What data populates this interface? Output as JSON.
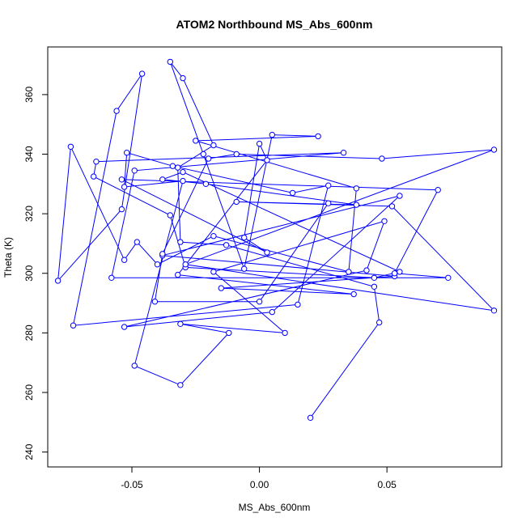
{
  "chart_data": {
    "type": "line",
    "title": "ATOM2 Northbound MS_Abs_600nm",
    "xlabel": "MS_Abs_600nm",
    "ylabel": "Theta (K)",
    "xlim": [
      -0.083,
      0.095
    ],
    "ylim": [
      235,
      376
    ],
    "x_ticks": [
      -0.05,
      0.0,
      0.05
    ],
    "x_tick_labels": [
      "-0.05",
      "0.00",
      "0.05"
    ],
    "y_ticks": [
      240,
      260,
      280,
      300,
      320,
      340,
      360
    ],
    "y_tick_labels": [
      "240",
      "260",
      "280",
      "300",
      "320",
      "340",
      "360"
    ],
    "grid": false,
    "series": [
      {
        "color": "#0000ff",
        "marker": "open-circle",
        "points": [
          {
            "x": 0.02,
            "y": 251.5
          },
          {
            "x": 0.047,
            "y": 283.5
          },
          {
            "x": 0.045,
            "y": 295.5
          },
          {
            "x": -0.013,
            "y": 309.5
          },
          {
            "x": -0.031,
            "y": 310.5
          },
          {
            "x": -0.032,
            "y": 335.5
          },
          {
            "x": -0.018,
            "y": 343.0
          },
          {
            "x": -0.03,
            "y": 365.5
          },
          {
            "x": -0.035,
            "y": 371.0
          },
          {
            "x": -0.022,
            "y": 340.0
          },
          {
            "x": -0.006,
            "y": 301.5
          },
          {
            "x": 0.005,
            "y": 346.5
          },
          {
            "x": 0.023,
            "y": 346.0
          },
          {
            "x": -0.025,
            "y": 344.5
          },
          {
            "x": 0.038,
            "y": 328.5
          },
          {
            "x": 0.035,
            "y": 300.5
          },
          {
            "x": -0.018,
            "y": 312.5
          },
          {
            "x": -0.04,
            "y": 303.0
          },
          {
            "x": -0.048,
            "y": 310.5
          },
          {
            "x": -0.053,
            "y": 304.5
          },
          {
            "x": -0.074,
            "y": 342.5
          },
          {
            "x": -0.079,
            "y": 297.5
          },
          {
            "x": -0.054,
            "y": 321.5
          },
          {
            "x": -0.046,
            "y": 367.0
          },
          {
            "x": -0.056,
            "y": 354.5
          },
          {
            "x": -0.073,
            "y": 282.5
          },
          {
            "x": 0.015,
            "y": 289.5
          },
          {
            "x": 0.027,
            "y": 329.5
          },
          {
            "x": 0.013,
            "y": 327.0
          },
          {
            "x": -0.034,
            "y": 336.0
          },
          {
            "x": -0.052,
            "y": 340.5
          },
          {
            "x": -0.053,
            "y": 329.0
          },
          {
            "x": -0.03,
            "y": 331.0
          },
          {
            "x": -0.049,
            "y": 269.0
          },
          {
            "x": -0.031,
            "y": 262.5
          },
          {
            "x": -0.012,
            "y": 280.0
          },
          {
            "x": -0.031,
            "y": 283.0
          },
          {
            "x": 0.01,
            "y": 280.0
          },
          {
            "x": -0.018,
            "y": 300.5
          },
          {
            "x": 0.049,
            "y": 317.5
          },
          {
            "x": 0.042,
            "y": 301.0
          },
          {
            "x": -0.053,
            "y": 282.0
          },
          {
            "x": 0.005,
            "y": 287.0
          },
          {
            "x": 0.055,
            "y": 326.0
          },
          {
            "x": -0.038,
            "y": 306.0
          },
          {
            "x": 0.053,
            "y": 299.0
          },
          {
            "x": -0.015,
            "y": 295.0
          },
          {
            "x": 0.037,
            "y": 293.0
          },
          {
            "x": -0.032,
            "y": 299.5
          },
          {
            "x": 0.003,
            "y": 338.0
          },
          {
            "x": 0.0,
            "y": 343.5
          },
          {
            "x": -0.006,
            "y": 312.0
          },
          {
            "x": 0.003,
            "y": 307.0
          },
          {
            "x": -0.054,
            "y": 331.5
          },
          {
            "x": 0.07,
            "y": 328.0
          },
          {
            "x": 0.053,
            "y": 300.0
          },
          {
            "x": 0.074,
            "y": 298.5
          },
          {
            "x": -0.058,
            "y": 298.5
          },
          {
            "x": -0.049,
            "y": 334.5
          },
          {
            "x": 0.033,
            "y": 340.5
          },
          {
            "x": -0.064,
            "y": 337.5
          },
          {
            "x": -0.065,
            "y": 332.5
          },
          {
            "x": -0.035,
            "y": 319.5
          },
          {
            "x": -0.029,
            "y": 302.0
          },
          {
            "x": 0.045,
            "y": 298.5
          },
          {
            "x": 0.055,
            "y": 300.5
          },
          {
            "x": -0.03,
            "y": 334.0
          },
          {
            "x": -0.038,
            "y": 331.5
          },
          {
            "x": -0.021,
            "y": 330.0
          },
          {
            "x": 0.038,
            "y": 323.0
          },
          {
            "x": -0.009,
            "y": 324.0
          },
          {
            "x": 0.052,
            "y": 322.5
          },
          {
            "x": 0.092,
            "y": 287.5
          },
          {
            "x": -0.029,
            "y": 303.0
          },
          {
            "x": 0.092,
            "y": 341.5
          },
          {
            "x": 0.048,
            "y": 338.5
          },
          {
            "x": -0.009,
            "y": 340.0
          },
          {
            "x": -0.02,
            "y": 338.5
          },
          {
            "x": -0.038,
            "y": 306.5
          },
          {
            "x": -0.041,
            "y": 290.5
          },
          {
            "x": 0.0,
            "y": 290.5
          },
          {
            "x": 0.027,
            "y": 323.5
          }
        ]
      }
    ]
  }
}
